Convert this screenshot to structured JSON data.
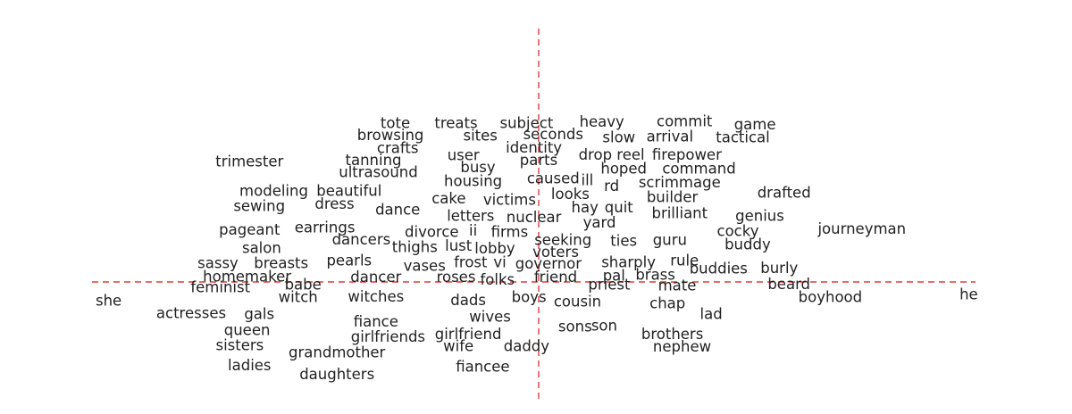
{
  "chart_data": {
    "type": "scatter",
    "title": "",
    "xlabel": "",
    "ylabel": "",
    "xlim": [
      -1.0,
      1.0
    ],
    "ylim": [
      -0.6,
      1.3
    ],
    "grid": false,
    "axis_lines": {
      "x": 0.0,
      "y": 0.0,
      "color": "#e03c3c",
      "style": "dashed"
    },
    "text_color": "#222222",
    "points": [
      {
        "label": "tote",
        "x": -0.295,
        "y": 1.14
      },
      {
        "label": "treats",
        "x": -0.17,
        "y": 1.14
      },
      {
        "label": "subject",
        "x": -0.025,
        "y": 1.14
      },
      {
        "label": "heavy",
        "x": 0.13,
        "y": 1.15
      },
      {
        "label": "commit",
        "x": 0.3,
        "y": 1.155
      },
      {
        "label": "game",
        "x": 0.445,
        "y": 1.13
      },
      {
        "label": "browsing",
        "x": -0.305,
        "y": 1.055
      },
      {
        "label": "sites",
        "x": -0.12,
        "y": 1.05
      },
      {
        "label": "seconds",
        "x": 0.03,
        "y": 1.06
      },
      {
        "label": "slow",
        "x": 0.165,
        "y": 1.04
      },
      {
        "label": "arrival",
        "x": 0.27,
        "y": 1.045
      },
      {
        "label": "tactical",
        "x": 0.42,
        "y": 1.04
      },
      {
        "label": "crafts",
        "x": -0.29,
        "y": 0.96
      },
      {
        "label": "identity",
        "x": -0.01,
        "y": 0.965
      },
      {
        "label": "user",
        "x": -0.155,
        "y": 0.91
      },
      {
        "label": "drop reel",
        "x": 0.15,
        "y": 0.915
      },
      {
        "label": "firepower",
        "x": 0.305,
        "y": 0.915
      },
      {
        "label": "trimester",
        "x": -0.595,
        "y": 0.865
      },
      {
        "label": "tanning",
        "x": -0.34,
        "y": 0.875
      },
      {
        "label": "parts",
        "x": 0.0,
        "y": 0.875
      },
      {
        "label": "busy",
        "x": -0.125,
        "y": 0.825
      },
      {
        "label": "hoped",
        "x": 0.175,
        "y": 0.815
      },
      {
        "label": "command",
        "x": 0.33,
        "y": 0.815
      },
      {
        "label": "ultrasound",
        "x": -0.33,
        "y": 0.79
      },
      {
        "label": "caused",
        "x": 0.03,
        "y": 0.745
      },
      {
        "label": "housing",
        "x": -0.135,
        "y": 0.725
      },
      {
        "label": "ill",
        "x": 0.1,
        "y": 0.73
      },
      {
        "label": "scrimmage",
        "x": 0.29,
        "y": 0.715
      },
      {
        "label": "rd",
        "x": 0.15,
        "y": 0.69
      },
      {
        "label": "modeling",
        "x": -0.545,
        "y": 0.655
      },
      {
        "label": "beautiful",
        "x": -0.39,
        "y": 0.655
      },
      {
        "label": "drafted",
        "x": 0.505,
        "y": 0.64
      },
      {
        "label": "looks",
        "x": 0.065,
        "y": 0.63
      },
      {
        "label": "builder",
        "x": 0.275,
        "y": 0.61
      },
      {
        "label": "cake",
        "x": -0.185,
        "y": 0.6
      },
      {
        "label": "victims",
        "x": -0.06,
        "y": 0.59
      },
      {
        "label": "sewing",
        "x": -0.575,
        "y": 0.545
      },
      {
        "label": "dress",
        "x": -0.42,
        "y": 0.56
      },
      {
        "label": "dance",
        "x": -0.29,
        "y": 0.52
      },
      {
        "label": "hay",
        "x": 0.095,
        "y": 0.535
      },
      {
        "label": "quit",
        "x": 0.165,
        "y": 0.535
      },
      {
        "label": "brilliant",
        "x": 0.29,
        "y": 0.495
      },
      {
        "label": "genius",
        "x": 0.455,
        "y": 0.475
      },
      {
        "label": "letters",
        "x": -0.14,
        "y": 0.475
      },
      {
        "label": "nuclear",
        "x": -0.01,
        "y": 0.465
      },
      {
        "label": "yard",
        "x": 0.125,
        "y": 0.425
      },
      {
        "label": "pageant",
        "x": -0.595,
        "y": 0.375
      },
      {
        "label": "earrings",
        "x": -0.44,
        "y": 0.39
      },
      {
        "label": "divorce",
        "x": -0.22,
        "y": 0.36
      },
      {
        "label": "ii",
        "x": -0.135,
        "y": 0.37
      },
      {
        "label": "firms",
        "x": -0.06,
        "y": 0.36
      },
      {
        "label": "journeyman",
        "x": 0.665,
        "y": 0.38
      },
      {
        "label": "cocky",
        "x": 0.41,
        "y": 0.365
      },
      {
        "label": "dancers",
        "x": -0.365,
        "y": 0.305
      },
      {
        "label": "seeking",
        "x": 0.05,
        "y": 0.3
      },
      {
        "label": "ties",
        "x": 0.175,
        "y": 0.295
      },
      {
        "label": "guru",
        "x": 0.27,
        "y": 0.3
      },
      {
        "label": "buddy",
        "x": 0.43,
        "y": 0.27
      },
      {
        "label": "salon",
        "x": -0.57,
        "y": 0.245
      },
      {
        "label": "thighs",
        "x": -0.255,
        "y": 0.25
      },
      {
        "label": "lust",
        "x": -0.165,
        "y": 0.26
      },
      {
        "label": "lobby",
        "x": -0.09,
        "y": 0.24
      },
      {
        "label": "voters",
        "x": 0.035,
        "y": 0.215
      },
      {
        "label": "rule",
        "x": 0.3,
        "y": 0.155
      },
      {
        "label": "sassy",
        "x": -0.66,
        "y": 0.135
      },
      {
        "label": "breasts",
        "x": -0.53,
        "y": 0.135
      },
      {
        "label": "pearls",
        "x": -0.39,
        "y": 0.155
      },
      {
        "label": "frost",
        "x": -0.14,
        "y": 0.14
      },
      {
        "label": "vi",
        "x": -0.08,
        "y": 0.14
      },
      {
        "label": "governor",
        "x": 0.02,
        "y": 0.13
      },
      {
        "label": "sharply",
        "x": 0.185,
        "y": 0.14
      },
      {
        "label": "vases",
        "x": -0.235,
        "y": 0.115
      },
      {
        "label": "buddies",
        "x": 0.37,
        "y": 0.095
      },
      {
        "label": "burly",
        "x": 0.495,
        "y": 0.1
      },
      {
        "label": "homemaker",
        "x": -0.6,
        "y": 0.04
      },
      {
        "label": "dancer",
        "x": -0.335,
        "y": 0.035
      },
      {
        "label": "roses",
        "x": -0.17,
        "y": 0.035
      },
      {
        "label": "friend",
        "x": 0.035,
        "y": 0.035
      },
      {
        "label": "pal",
        "x": 0.155,
        "y": 0.045
      },
      {
        "label": "brass",
        "x": 0.24,
        "y": 0.05
      },
      {
        "label": "folks",
        "x": -0.085,
        "y": 0.015
      },
      {
        "label": "babe",
        "x": -0.485,
        "y": -0.02
      },
      {
        "label": "beard",
        "x": 0.515,
        "y": -0.015
      },
      {
        "label": "feminist",
        "x": -0.655,
        "y": -0.04
      },
      {
        "label": "priest",
        "x": 0.145,
        "y": -0.02
      },
      {
        "label": "mate",
        "x": 0.285,
        "y": -0.025
      },
      {
        "label": "he",
        "x": 0.885,
        "y": -0.09
      },
      {
        "label": "witch",
        "x": -0.495,
        "y": -0.11
      },
      {
        "label": "witches",
        "x": -0.335,
        "y": -0.105
      },
      {
        "label": "boys",
        "x": -0.02,
        "y": -0.11
      },
      {
        "label": "boyhood",
        "x": 0.6,
        "y": -0.11
      },
      {
        "label": "she",
        "x": -0.885,
        "y": -0.135
      },
      {
        "label": "dads",
        "x": -0.145,
        "y": -0.13
      },
      {
        "label": "cousin",
        "x": 0.08,
        "y": -0.14
      },
      {
        "label": "chap",
        "x": 0.265,
        "y": -0.155
      },
      {
        "label": "actresses",
        "x": -0.715,
        "y": -0.225
      },
      {
        "label": "gals",
        "x": -0.575,
        "y": -0.23
      },
      {
        "label": "lad",
        "x": 0.355,
        "y": -0.23
      },
      {
        "label": "wives",
        "x": -0.1,
        "y": -0.25
      },
      {
        "label": "fiance",
        "x": -0.335,
        "y": -0.285
      },
      {
        "label": "sons",
        "x": 0.075,
        "y": -0.32
      },
      {
        "label": "son",
        "x": 0.135,
        "y": -0.315
      },
      {
        "label": "queen",
        "x": -0.6,
        "y": -0.345
      },
      {
        "label": "girlfriend",
        "x": -0.145,
        "y": -0.375
      },
      {
        "label": "brothers",
        "x": 0.275,
        "y": -0.375
      },
      {
        "label": "girlfriends",
        "x": -0.31,
        "y": -0.395
      },
      {
        "label": "sisters",
        "x": -0.615,
        "y": -0.455
      },
      {
        "label": "wife",
        "x": -0.165,
        "y": -0.46
      },
      {
        "label": "daddy",
        "x": -0.025,
        "y": -0.46
      },
      {
        "label": "nephew",
        "x": 0.295,
        "y": -0.465
      },
      {
        "label": "grandmother",
        "x": -0.415,
        "y": -0.505
      },
      {
        "label": "ladies",
        "x": -0.595,
        "y": -0.6
      },
      {
        "label": "fiancee",
        "x": -0.115,
        "y": -0.61
      },
      {
        "label": "daughters",
        "x": -0.415,
        "y": -0.665
      }
    ]
  }
}
